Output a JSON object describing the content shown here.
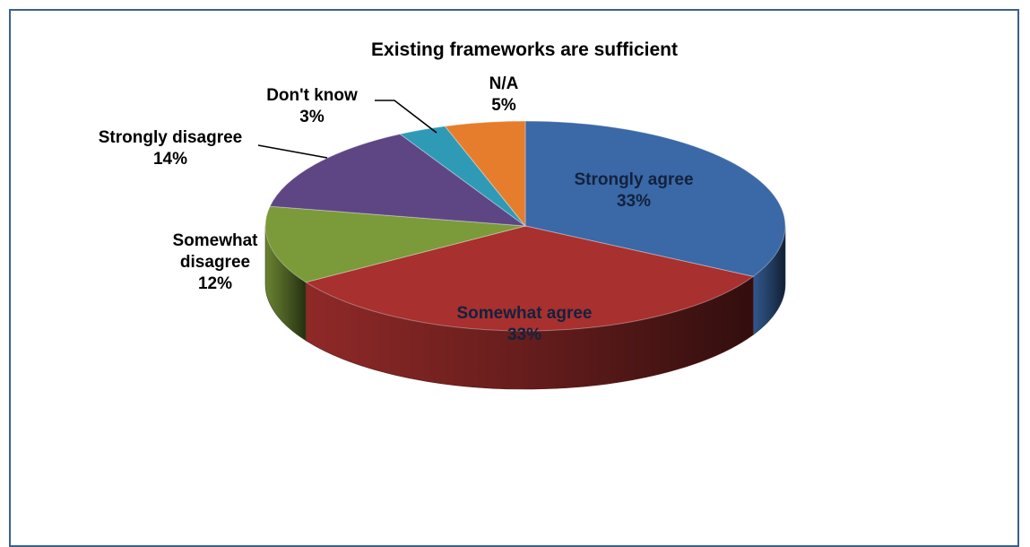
{
  "chart_data": {
    "type": "pie",
    "title": "Existing frameworks are sufficient",
    "slices": [
      {
        "label": "Strongly agree",
        "value": 33,
        "value_label": "33%",
        "color": "#3b68a6",
        "label_color": "#12223e"
      },
      {
        "label": "Somewhat agree",
        "value": 33,
        "value_label": "33%",
        "color": "#a8302f",
        "label_color": "#12223e"
      },
      {
        "label": "Somewhat disagree",
        "label_lines": [
          "Somewhat",
          "disagree"
        ],
        "value": 12,
        "value_label": "12%",
        "color": "#7b9a3a",
        "label_color": "#000000"
      },
      {
        "label": "Strongly disagree",
        "value": 14,
        "value_label": "14%",
        "color": "#5e4684",
        "label_color": "#000000"
      },
      {
        "label": "Don't know",
        "value": 3,
        "value_label": "3%",
        "color": "#2f9ab6",
        "label_color": "#000000"
      },
      {
        "label": "N/A",
        "value": 5,
        "value_label": "5%",
        "color": "#e57d2c",
        "label_color": "#000000"
      }
    ],
    "style": "3d-perspective",
    "legend": "none"
  }
}
